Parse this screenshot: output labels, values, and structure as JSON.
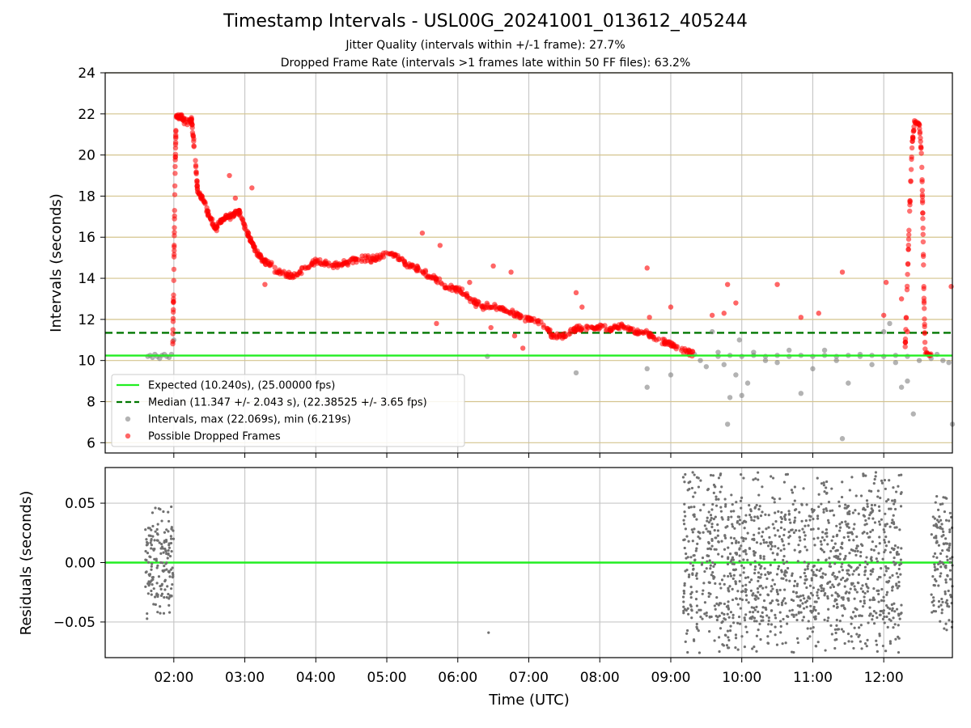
{
  "figure": {
    "title": "Timestamp Intervals - USL00G_20241001_013612_405244",
    "subtitle1": "Jitter Quality (intervals within +/-1 frame): 27.7%",
    "subtitle2": "Dropped Frame Rate (intervals >1 frames late within 50 FF files): 63.2%"
  },
  "chart_data": [
    {
      "type": "scatter",
      "name": "intervals",
      "xlabel": "",
      "ylabel": "Intervals (seconds)",
      "xlim": [
        "01:02",
        "12:58"
      ],
      "ylim": [
        5.5,
        24
      ],
      "yticks": [
        6,
        8,
        10,
        12,
        14,
        16,
        18,
        20,
        22,
        24
      ],
      "xticks": [
        "02:00",
        "03:00",
        "04:00",
        "05:00",
        "06:00",
        "07:00",
        "08:00",
        "09:00",
        "10:00",
        "11:00",
        "12:00"
      ],
      "grid": true,
      "legend_position": "lower-left",
      "reference_lines": [
        {
          "label": "Expected (10.240s), (25.00000 fps)",
          "value": 10.24,
          "style": "solid",
          "color": "#22ee22"
        },
        {
          "label": "Median (11.347 +/- 2.043 s), (22.38525 +/- 3.65 fps)",
          "value": 11.347,
          "style": "dashed",
          "color": "#007700"
        }
      ],
      "series": [
        {
          "label": "Intervals, max (22.069s), min (6.219s)",
          "color": "#808080",
          "points": [
            [
              "01:38",
              10.2
            ],
            [
              "01:40",
              10.25
            ],
            [
              "01:42",
              10.15
            ],
            [
              "01:44",
              10.3
            ],
            [
              "01:46",
              10.2
            ],
            [
              "01:48",
              10.1
            ],
            [
              "01:50",
              10.25
            ],
            [
              "01:52",
              10.3
            ],
            [
              "01:54",
              10.2
            ],
            [
              "01:56",
              10.15
            ],
            [
              "01:58",
              10.3
            ],
            [
              "02:00",
              11.0
            ],
            [
              "06:25",
              10.2
            ],
            [
              "07:40",
              9.4
            ],
            [
              "08:40",
              8.7
            ],
            [
              "08:40",
              9.6
            ],
            [
              "09:00",
              9.3
            ],
            [
              "09:20",
              10.3
            ],
            [
              "09:25",
              10.0
            ],
            [
              "09:30",
              9.7
            ],
            [
              "09:35",
              11.4
            ],
            [
              "09:40",
              10.4
            ],
            [
              "09:45",
              9.8
            ],
            [
              "09:50",
              8.2
            ],
            [
              "09:55",
              9.3
            ],
            [
              "10:00",
              8.3
            ],
            [
              "10:05",
              8.9
            ],
            [
              "09:48",
              6.9
            ],
            [
              "09:58",
              11.0
            ],
            [
              "10:10",
              10.4
            ],
            [
              "10:20",
              10.0
            ],
            [
              "10:30",
              9.9
            ],
            [
              "10:40",
              10.5
            ],
            [
              "10:50",
              8.4
            ],
            [
              "11:00",
              9.6
            ],
            [
              "11:10",
              10.5
            ],
            [
              "11:20",
              10.0
            ],
            [
              "11:25",
              6.2
            ],
            [
              "11:30",
              8.9
            ],
            [
              "11:40",
              10.3
            ],
            [
              "11:50",
              9.8
            ],
            [
              "12:00",
              11.4
            ],
            [
              "12:05",
              11.8
            ],
            [
              "12:10",
              9.9
            ],
            [
              "12:15",
              8.7
            ],
            [
              "12:20",
              9.0
            ],
            [
              "12:25",
              7.4
            ],
            [
              "12:30",
              10.0
            ],
            [
              "09:40",
              10.2
            ],
            [
              "09:50",
              10.25
            ],
            [
              "10:00",
              10.2
            ],
            [
              "10:10",
              10.25
            ],
            [
              "10:20",
              10.2
            ],
            [
              "10:30",
              10.25
            ],
            [
              "10:40",
              10.2
            ],
            [
              "10:50",
              10.25
            ],
            [
              "11:00",
              10.2
            ],
            [
              "11:10",
              10.25
            ],
            [
              "11:20",
              10.2
            ],
            [
              "11:30",
              10.25
            ],
            [
              "11:40",
              10.2
            ],
            [
              "11:50",
              10.25
            ],
            [
              "12:00",
              10.2
            ],
            [
              "12:10",
              10.25
            ],
            [
              "12:20",
              10.2
            ],
            [
              "12:40",
              10.1
            ],
            [
              "12:45",
              10.3
            ],
            [
              "12:50",
              10.0
            ],
            [
              "12:55",
              9.9
            ],
            [
              "12:58",
              6.9
            ]
          ]
        },
        {
          "label": "Possible Dropped Frames",
          "color": "#ff0000",
          "curve": [
            [
              "01:59",
              10.4
            ],
            [
              "02:00",
              14.0
            ],
            [
              "02:01",
              19.0
            ],
            [
              "02:02",
              21.8
            ],
            [
              "02:05",
              21.9
            ],
            [
              "02:10",
              21.6
            ],
            [
              "02:15",
              21.7
            ],
            [
              "02:18",
              20.0
            ],
            [
              "02:20",
              18.3
            ],
            [
              "02:25",
              17.8
            ],
            [
              "02:30",
              17.0
            ],
            [
              "02:35",
              16.4
            ],
            [
              "02:40",
              16.8
            ],
            [
              "02:45",
              17.0
            ],
            [
              "02:50",
              17.1
            ],
            [
              "02:55",
              17.3
            ],
            [
              "03:00",
              16.5
            ],
            [
              "03:05",
              15.8
            ],
            [
              "03:10",
              15.3
            ],
            [
              "03:15",
              14.9
            ],
            [
              "03:20",
              14.7
            ],
            [
              "03:30",
              14.3
            ],
            [
              "03:40",
              14.1
            ],
            [
              "03:50",
              14.5
            ],
            [
              "04:00",
              14.8
            ],
            [
              "04:10",
              14.7
            ],
            [
              "04:20",
              14.6
            ],
            [
              "04:30",
              14.9
            ],
            [
              "04:40",
              15.0
            ],
            [
              "04:50",
              14.9
            ],
            [
              "05:00",
              15.3
            ],
            [
              "05:10",
              15.0
            ],
            [
              "05:20",
              14.6
            ],
            [
              "05:30",
              14.3
            ],
            [
              "05:40",
              14.0
            ],
            [
              "05:50",
              13.6
            ],
            [
              "06:00",
              13.5
            ],
            [
              "06:10",
              13.0
            ],
            [
              "06:20",
              12.6
            ],
            [
              "06:30",
              12.6
            ],
            [
              "06:40",
              12.5
            ],
            [
              "06:50",
              12.2
            ],
            [
              "07:00",
              12.0
            ],
            [
              "07:10",
              11.8
            ],
            [
              "07:20",
              11.2
            ],
            [
              "07:30",
              11.2
            ],
            [
              "07:40",
              11.5
            ],
            [
              "07:50",
              11.6
            ],
            [
              "08:00",
              11.6
            ],
            [
              "08:10",
              11.5
            ],
            [
              "08:20",
              11.7
            ],
            [
              "08:30",
              11.4
            ],
            [
              "08:40",
              11.3
            ],
            [
              "08:50",
              11.0
            ],
            [
              "09:00",
              10.8
            ],
            [
              "09:10",
              10.5
            ],
            [
              "09:20",
              10.3
            ]
          ],
          "curve2": [
            [
              "12:18",
              10.4
            ],
            [
              "12:20",
              14.0
            ],
            [
              "12:22",
              17.5
            ],
            [
              "12:24",
              20.5
            ],
            [
              "12:26",
              21.6
            ],
            [
              "12:30",
              21.5
            ],
            [
              "12:32",
              20.0
            ],
            [
              "12:33",
              17.0
            ],
            [
              "12:34",
              13.0
            ],
            [
              "12:35",
              10.4
            ],
            [
              "12:40",
              10.25
            ]
          ],
          "points": [
            [
              "02:47",
              19.0
            ],
            [
              "02:52",
              17.9
            ],
            [
              "03:06",
              18.4
            ],
            [
              "03:17",
              13.7
            ],
            [
              "05:30",
              16.2
            ],
            [
              "05:42",
              11.8
            ],
            [
              "05:45",
              15.6
            ],
            [
              "06:10",
              13.8
            ],
            [
              "06:28",
              11.6
            ],
            [
              "06:30",
              14.6
            ],
            [
              "06:45",
              14.3
            ],
            [
              "06:48",
              11.2
            ],
            [
              "06:55",
              10.6
            ],
            [
              "07:40",
              13.3
            ],
            [
              "07:45",
              12.6
            ],
            [
              "08:40",
              14.5
            ],
            [
              "08:42",
              12.1
            ],
            [
              "09:00",
              12.6
            ],
            [
              "09:35",
              12.2
            ],
            [
              "09:45",
              12.3
            ],
            [
              "09:48",
              13.7
            ],
            [
              "09:55",
              12.8
            ],
            [
              "10:30",
              13.7
            ],
            [
              "10:50",
              12.1
            ],
            [
              "11:05",
              12.3
            ],
            [
              "11:25",
              14.3
            ],
            [
              "12:00",
              12.2
            ],
            [
              "12:02",
              13.8
            ],
            [
              "12:15",
              13.0
            ],
            [
              "12:20",
              11.4
            ],
            [
              "12:57",
              13.6
            ]
          ]
        }
      ]
    },
    {
      "type": "scatter",
      "name": "residuals",
      "xlabel": "Time (UTC)",
      "ylabel": "Residuals (seconds)",
      "ylim": [
        -0.08,
        0.08
      ],
      "yticks": [
        "−0.05",
        "0.00",
        "0.05"
      ],
      "ytick_values": [
        -0.05,
        0.0,
        0.05
      ],
      "grid": true,
      "zero_line_color": "#22ee22",
      "clusters": [
        {
          "from": "01:36",
          "to": "02:00",
          "spread": 0.05
        },
        {
          "from": "09:10",
          "to": "12:15",
          "spread": 0.08
        },
        {
          "from": "12:40",
          "to": "12:58",
          "spread": 0.06
        }
      ],
      "points": [
        [
          "06:26",
          -0.059
        ]
      ]
    }
  ]
}
